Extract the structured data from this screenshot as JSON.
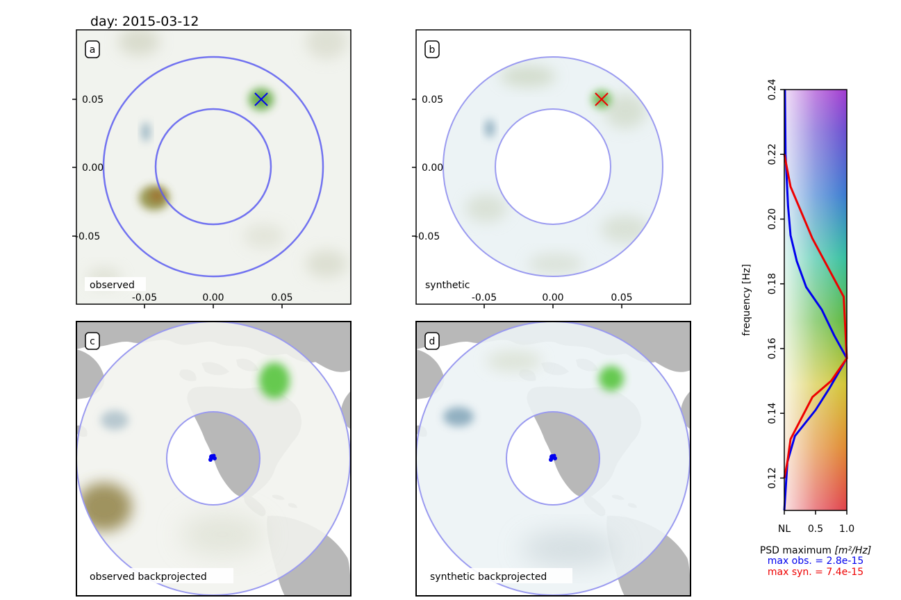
{
  "figure": {
    "day_label": "day: 2015-03-12"
  },
  "panels": [
    {
      "id": "a",
      "tag": "a",
      "caption": "observed",
      "marker_color": "#0000ee",
      "xticks": [
        "-0.05",
        "0.00",
        "0.05"
      ],
      "yticks": [
        "0.05",
        "0.00",
        "-0.05"
      ]
    },
    {
      "id": "b",
      "tag": "b",
      "caption": "synthetic",
      "marker_color": "#ee0000",
      "xticks": [
        "-0.05",
        "0.00",
        "0.05"
      ],
      "yticks": [
        "0.05",
        "0.00",
        "-0.05"
      ]
    },
    {
      "id": "c",
      "tag": "c",
      "caption": "observed backprojected"
    },
    {
      "id": "d",
      "tag": "d",
      "caption": "synthetic backprojected"
    }
  ],
  "colors": {
    "ring": "#5b5bf0",
    "ring_light": "#9a9af0",
    "land": "#b8b8b8",
    "background_observed": "#f1f3ee",
    "background_synthetic": "#ecf3f5",
    "blob_green": "#57c43d",
    "blob_brown": "#9b7a3f",
    "blob_blue": "#7a9fb4",
    "station": "#0000ee",
    "obs_curve": "#0000ee",
    "syn_curve": "#ee0000"
  },
  "chart_data": {
    "type": "line",
    "ylabel": "frequency [Hz]",
    "xlabel": "PSD maximum [m²/Hz]",
    "xlabel_prefix": "PSD maximum ",
    "xlabel_unit": "[m²/Hz]",
    "xlim": [
      0,
      1.0
    ],
    "ylim": [
      0.11,
      0.24
    ],
    "xtick_labels": [
      "NL",
      "0.5",
      "1.0"
    ],
    "xticks": [
      0,
      0.5,
      1.0
    ],
    "yticks": [
      0.12,
      0.14,
      0.16,
      0.18,
      0.2,
      0.22,
      0.24
    ],
    "ytick_labels": [
      "0.12",
      "0.14",
      "0.16",
      "0.18",
      "0.20",
      "0.22",
      "0.24"
    ],
    "series": [
      {
        "name": "max obs.",
        "annotation": "max obs. = 2.8e-15",
        "color": "#0000ee",
        "points": [
          [
            0.0,
            0.11
          ],
          [
            0.05,
            0.125
          ],
          [
            0.17,
            0.133
          ],
          [
            0.5,
            0.141
          ],
          [
            0.73,
            0.148
          ],
          [
            1.0,
            0.157
          ],
          [
            0.8,
            0.164
          ],
          [
            0.6,
            0.172
          ],
          [
            0.35,
            0.179
          ],
          [
            0.2,
            0.187
          ],
          [
            0.1,
            0.195
          ],
          [
            0.06,
            0.204
          ],
          [
            0.04,
            0.212
          ],
          [
            0.02,
            0.22
          ],
          [
            0.01,
            0.24
          ]
        ]
      },
      {
        "name": "max syn.",
        "annotation": "max syn. = 7.4e-15",
        "color": "#ee0000",
        "points": [
          [
            0.0,
            0.12
          ],
          [
            0.05,
            0.125
          ],
          [
            0.1,
            0.132
          ],
          [
            0.45,
            0.145
          ],
          [
            0.75,
            0.15
          ],
          [
            1.0,
            0.157
          ],
          [
            0.95,
            0.176
          ],
          [
            0.45,
            0.194
          ],
          [
            0.1,
            0.21
          ],
          [
            0.0,
            0.22
          ]
        ]
      }
    ],
    "colorbar": "rainbow gradient (red at bottom through yellow, green, cyan, blue to purple at top)"
  }
}
